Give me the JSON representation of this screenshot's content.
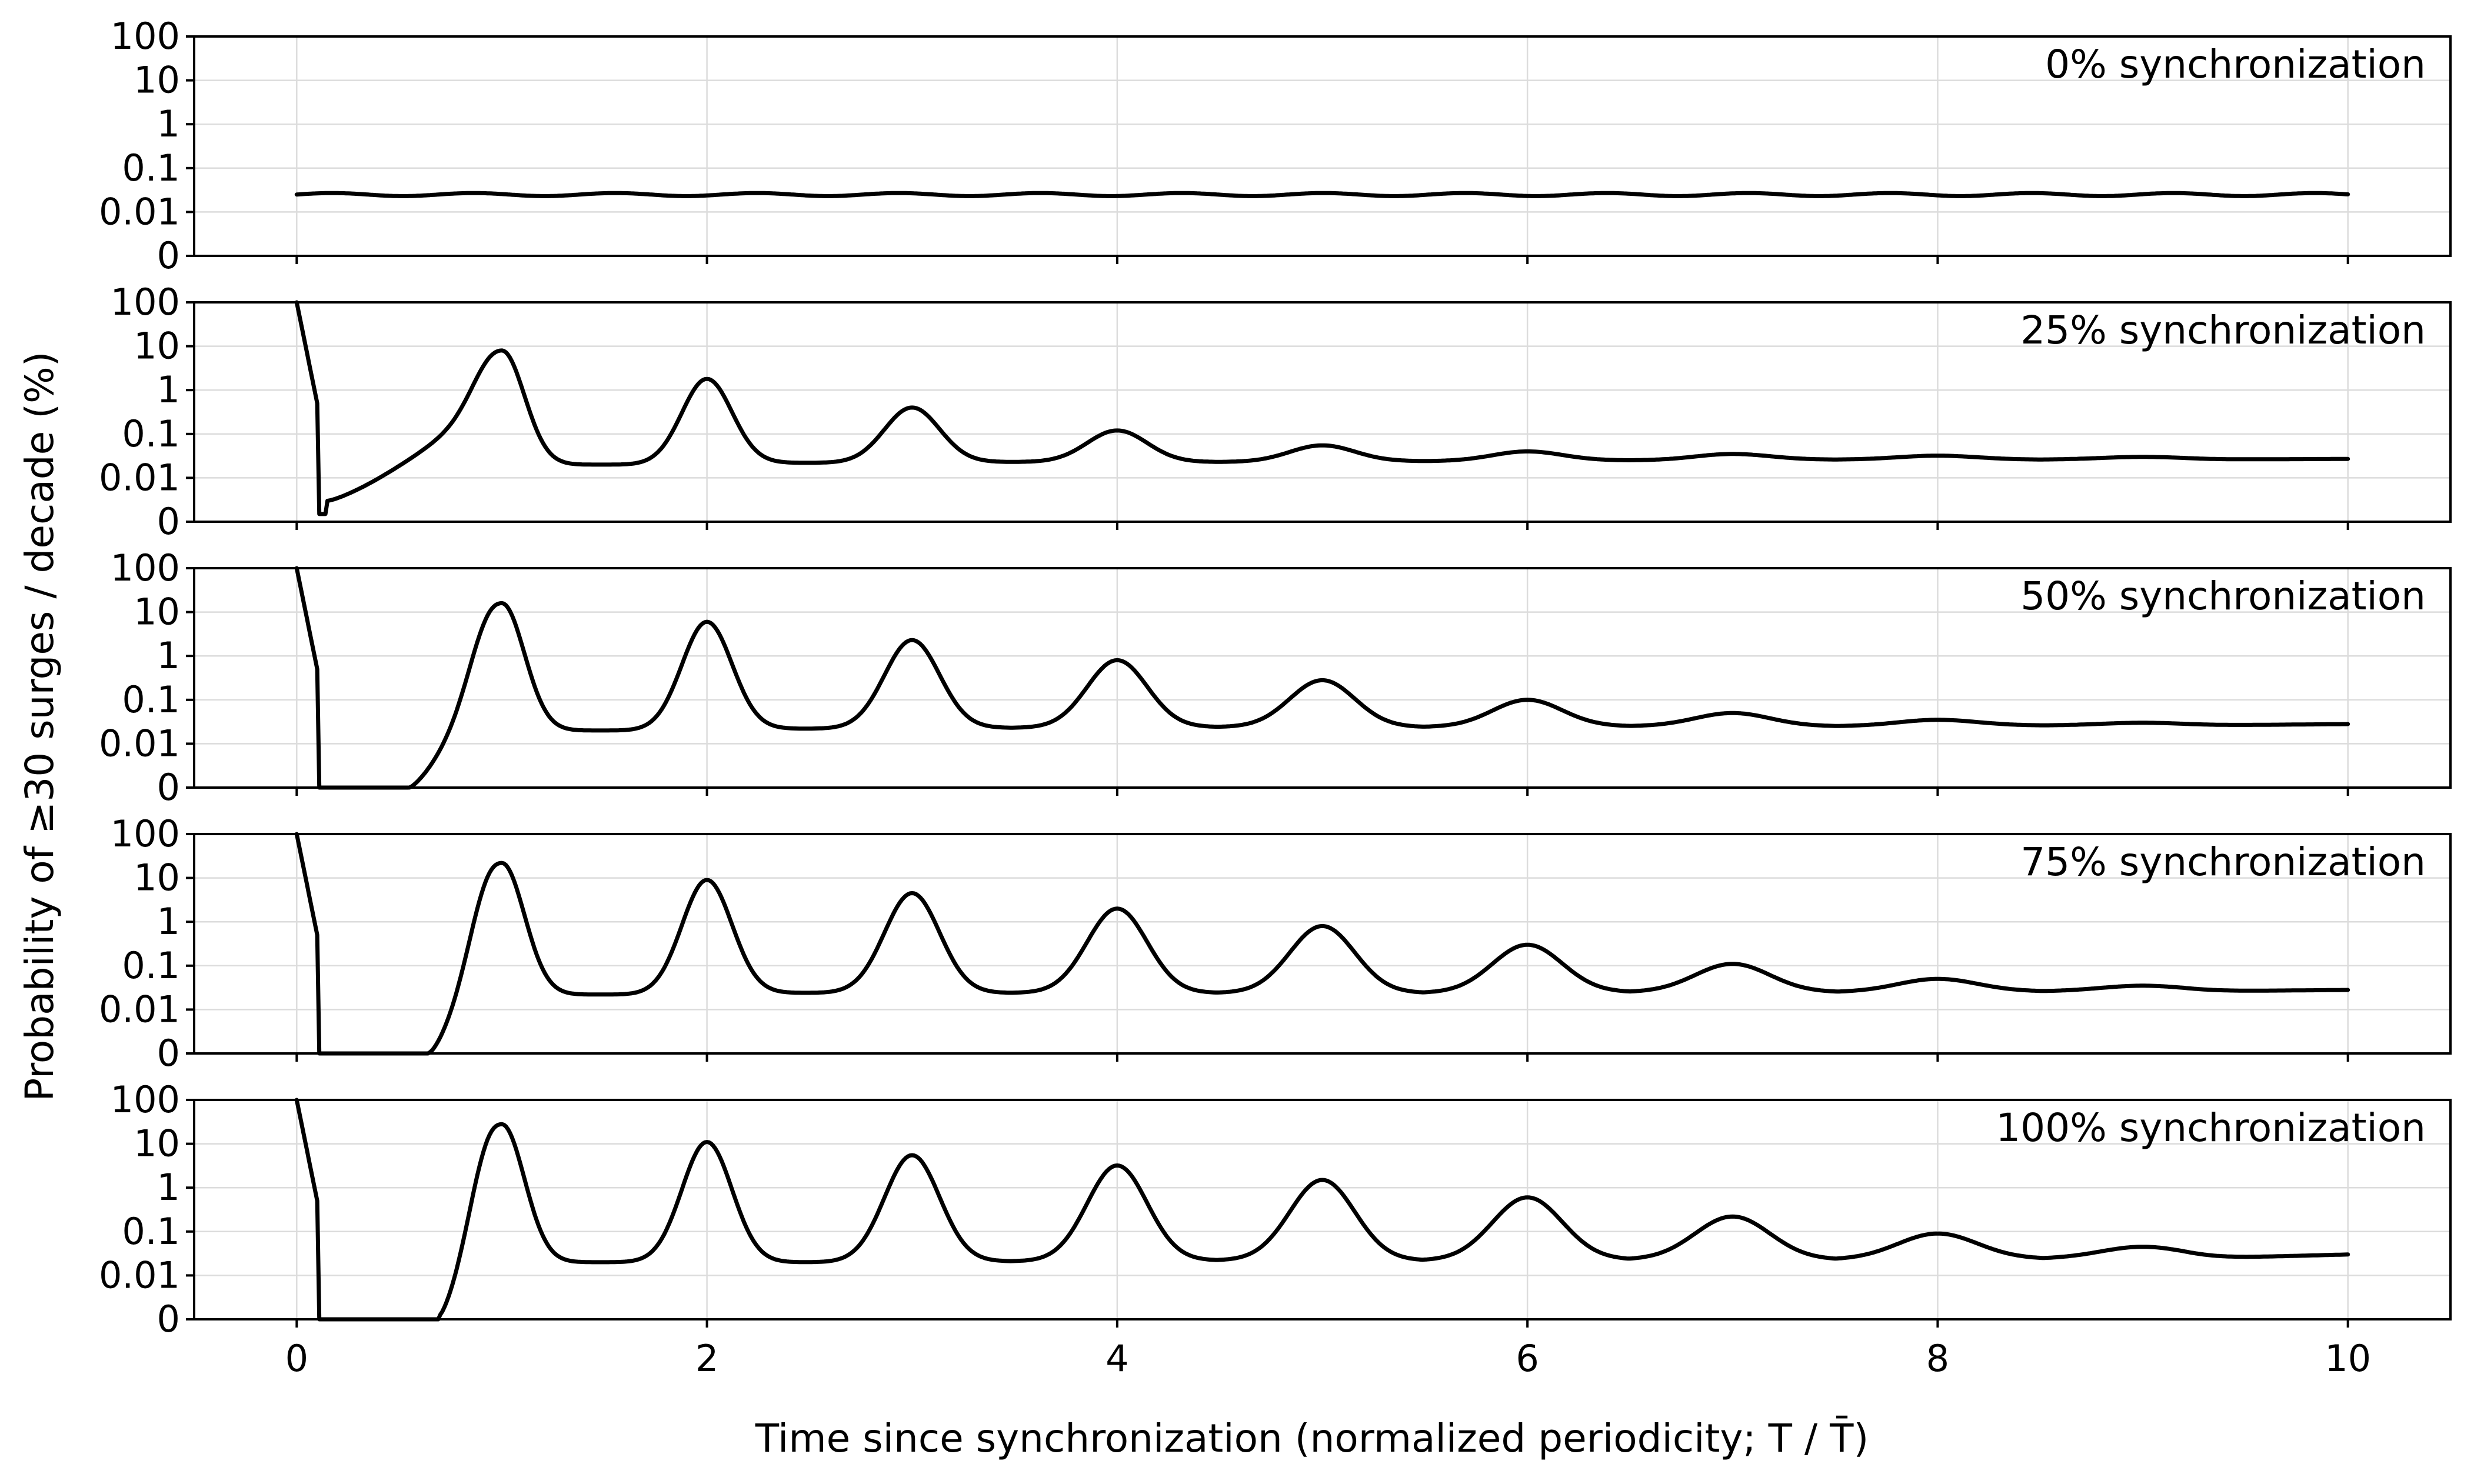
{
  "chart_data": {
    "type": "line",
    "ylabel": "Probability of ≥30 surges / decade (%)",
    "xlabel": "Time since synchronization (normalized periodicity; T / T̄)",
    "xlim": [
      -0.5,
      10.5
    ],
    "x_ticks": [
      "0",
      "2",
      "4",
      "6",
      "8",
      "10"
    ],
    "y_ticks": [
      "0",
      "0.01",
      "0.1",
      "1",
      "10",
      "100"
    ],
    "y_scale": "symlog",
    "grid": true,
    "panels": [
      {
        "title": "0% synchronization",
        "start": 0.025,
        "drop_end": 0.025,
        "ramp_start": 0.25,
        "ramp_from": 0.025,
        "peaks": [],
        "plateaus": [],
        "end": 0.027
      },
      {
        "title": "25% synchronization",
        "start": 100,
        "drop_end": 0.0015,
        "ramp_start": 0.15,
        "ramp_from": 0.003,
        "peaks": [
          8,
          1.8,
          0.4,
          0.12,
          0.055,
          0.04,
          0.035,
          0.032,
          0.03
        ],
        "plateaus": [
          0.015,
          0.02,
          0.022,
          0.023,
          0.023,
          0.024,
          0.025,
          0.026,
          0.026
        ],
        "end": 0.027
      },
      {
        "title": "50% synchronization",
        "start": 100,
        "drop_end": 0,
        "ramp_start": 0.55,
        "ramp_from": 0.001,
        "peaks": [
          16,
          6,
          2.3,
          0.8,
          0.28,
          0.1,
          0.05,
          0.035,
          0.03
        ],
        "plateaus": [
          0.012,
          0.02,
          0.022,
          0.023,
          0.024,
          0.024,
          0.025,
          0.025,
          0.026
        ],
        "end": 0.028
      },
      {
        "title": "75% synchronization",
        "start": 100,
        "drop_end": 0,
        "ramp_start": 0.65,
        "ramp_from": 0.001,
        "peaks": [
          22,
          9,
          4.5,
          2,
          0.8,
          0.3,
          0.11,
          0.05,
          0.035
        ],
        "plateaus": [
          0.01,
          0.022,
          0.024,
          0.024,
          0.024,
          0.024,
          0.025,
          0.025,
          0.026
        ],
        "end": 0.028
      },
      {
        "title": "100% synchronization",
        "start": 100,
        "drop_end": 0,
        "ramp_start": 0.7,
        "ramp_from": 0.001,
        "peaks": [
          28,
          11,
          5.5,
          3.2,
          1.5,
          0.6,
          0.22,
          0.09,
          0.045
        ],
        "plateaus": [
          0.009,
          0.02,
          0.02,
          0.021,
          0.022,
          0.022,
          0.023,
          0.023,
          0.024
        ],
        "end": 0.03
      }
    ]
  }
}
